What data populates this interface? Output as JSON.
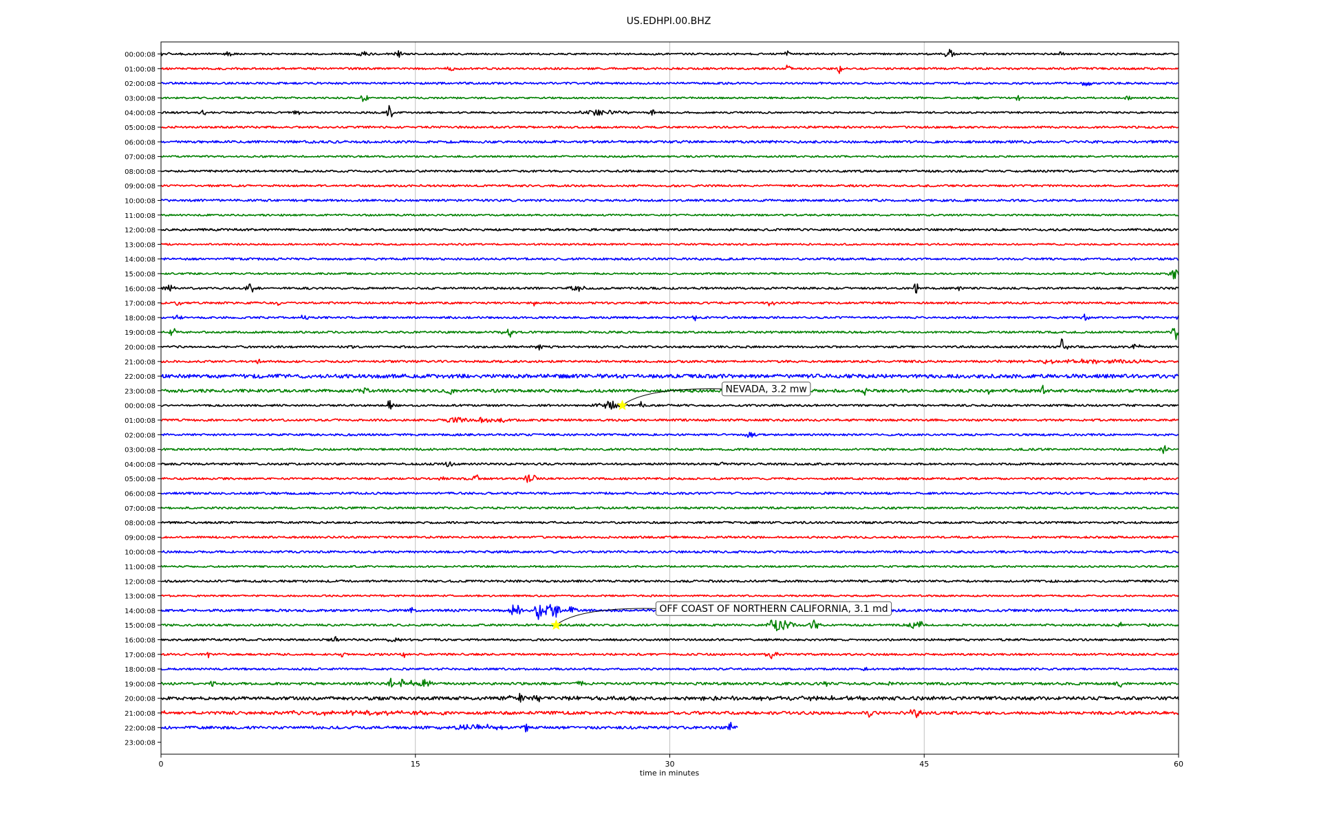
{
  "chart_data": {
    "type": "line",
    "title": "US.EDHPI.00.BHZ",
    "xlabel": "time in minutes",
    "ylabel": "",
    "xlim": [
      0,
      60
    ],
    "x_ticks": [
      0,
      15,
      30,
      45,
      60
    ],
    "x_tick_labels": [
      "0",
      "15",
      "30",
      "45",
      "60"
    ],
    "grid": "vertical",
    "color_cycle": [
      "#000000",
      "#ff0000",
      "#0000ff",
      "#008000"
    ],
    "row_labels": [
      "00:00:08",
      "01:00:08",
      "02:00:08",
      "03:00:08",
      "04:00:08",
      "05:00:08",
      "06:00:08",
      "07:00:08",
      "08:00:08",
      "09:00:08",
      "10:00:08",
      "11:00:08",
      "12:00:08",
      "13:00:08",
      "14:00:08",
      "15:00:08",
      "16:00:08",
      "17:00:08",
      "18:00:08",
      "19:00:08",
      "20:00:08",
      "21:00:08",
      "22:00:08",
      "23:00:08",
      "00:00:08",
      "01:00:08",
      "02:00:08",
      "03:00:08",
      "04:00:08",
      "05:00:08",
      "06:00:08",
      "07:00:08",
      "08:00:08",
      "09:00:08",
      "10:00:08",
      "11:00:08",
      "12:00:08",
      "13:00:08",
      "14:00:08",
      "15:00:08",
      "16:00:08",
      "17:00:08",
      "18:00:08",
      "19:00:08",
      "20:00:08",
      "21:00:08",
      "22:00:08",
      "23:00:08"
    ],
    "traces": [
      {
        "noise": 1.3,
        "bursts": [
          [
            0,
            3,
            1.5
          ],
          [
            4,
            0.3,
            5
          ],
          [
            12,
            0.6,
            4
          ],
          [
            14,
            0.3,
            6
          ],
          [
            37,
            0.3,
            4
          ],
          [
            46.5,
            0.4,
            6
          ],
          [
            48.5,
            0.5,
            5
          ],
          [
            53,
            0.3,
            3
          ]
        ]
      },
      {
        "noise": 1.5,
        "bursts": [
          [
            17,
            0.3,
            5
          ],
          [
            37,
            0.2,
            7
          ],
          [
            40,
            0.2,
            9
          ]
        ]
      },
      {
        "noise": 1.5,
        "bursts": [
          [
            54.5,
            0.6,
            3
          ]
        ]
      },
      {
        "noise": 1.3,
        "bursts": [
          [
            12,
            0.4,
            5
          ],
          [
            48,
            0.3,
            3
          ],
          [
            50.5,
            0.2,
            6
          ],
          [
            57,
            0.3,
            5
          ]
        ]
      },
      {
        "noise": 1.3,
        "bursts": [
          [
            2.5,
            0.3,
            4
          ],
          [
            8,
            0.3,
            5
          ],
          [
            13.5,
            0.3,
            8
          ],
          [
            26,
            2,
            4
          ],
          [
            29,
            0.3,
            4
          ]
        ]
      },
      {
        "noise": 1.5,
        "bursts": []
      },
      {
        "noise": 1.8,
        "bursts": []
      },
      {
        "noise": 1.3,
        "bursts": []
      },
      {
        "noise": 1.5,
        "bursts": []
      },
      {
        "noise": 1.5,
        "bursts": []
      },
      {
        "noise": 1.6,
        "bursts": []
      },
      {
        "noise": 1.3,
        "bursts": []
      },
      {
        "noise": 1.6,
        "bursts": []
      },
      {
        "noise": 1.3,
        "bursts": []
      },
      {
        "noise": 1.6,
        "bursts": []
      },
      {
        "noise": 1.3,
        "bursts": [
          [
            59.7,
            0.4,
            10
          ]
        ]
      },
      {
        "noise": 1.5,
        "bursts": [
          [
            0.5,
            0.5,
            4
          ],
          [
            5.3,
            0.5,
            8
          ],
          [
            24.5,
            0.6,
            5
          ],
          [
            44.5,
            0.3,
            7
          ],
          [
            47,
            0.2,
            6
          ]
        ]
      },
      {
        "noise": 1.5,
        "bursts": [
          [
            1,
            0.3,
            3
          ],
          [
            6.8,
            0.3,
            5
          ],
          [
            22,
            0.2,
            4
          ],
          [
            36,
            0.4,
            3
          ]
        ]
      },
      {
        "noise": 1.5,
        "bursts": [
          [
            1,
            0.4,
            3
          ],
          [
            8.5,
            0.5,
            3
          ],
          [
            31.5,
            0.2,
            4
          ],
          [
            54.5,
            0.4,
            5
          ],
          [
            57.8,
            0.2,
            4
          ],
          [
            59.9,
            0.2,
            10
          ]
        ]
      },
      {
        "noise": 1.5,
        "bursts": [
          [
            0.8,
            0.5,
            4
          ],
          [
            20.5,
            0.5,
            5
          ],
          [
            59.8,
            0.3,
            9
          ]
        ]
      },
      {
        "noise": 1.5,
        "bursts": [
          [
            11.2,
            0.3,
            3
          ],
          [
            22.3,
            0.5,
            3
          ],
          [
            53.2,
            0.3,
            10
          ],
          [
            57.5,
            0.4,
            4
          ]
        ]
      },
      {
        "noise": 1.6,
        "bursts": [
          [
            5.8,
            0.2,
            5
          ],
          [
            54,
            6,
            2.4
          ]
        ]
      },
      {
        "noise": 2.8,
        "bursts": []
      },
      {
        "noise": 2.2,
        "bursts": [
          [
            12,
            0.5,
            4
          ],
          [
            17.2,
            0.5,
            6
          ],
          [
            41.5,
            0.2,
            5
          ],
          [
            48.8,
            0.2,
            4
          ],
          [
            52,
            0.2,
            6
          ]
        ]
      },
      {
        "noise": 1.5,
        "bursts": [
          [
            13.5,
            0.3,
            6
          ],
          [
            26.5,
            1.2,
            6
          ],
          [
            28.3,
            0.2,
            5
          ]
        ]
      },
      {
        "noise": 1.6,
        "bursts": [
          [
            17.5,
            1,
            5
          ],
          [
            19,
            0.8,
            4
          ],
          [
            20,
            0.5,
            4
          ]
        ]
      },
      {
        "noise": 1.5,
        "bursts": [
          [
            34.8,
            0.5,
            4
          ]
        ]
      },
      {
        "noise": 1.5,
        "bursts": [
          [
            59.2,
            0.4,
            5
          ]
        ]
      },
      {
        "noise": 1.5,
        "bursts": [
          [
            17,
            0.3,
            6
          ],
          [
            33,
            0.3,
            3
          ]
        ]
      },
      {
        "noise": 1.5,
        "bursts": [
          [
            16.5,
            0.5,
            3
          ],
          [
            18.6,
            0.2,
            6
          ],
          [
            21.8,
            0.5,
            8
          ]
        ]
      },
      {
        "noise": 1.6,
        "bursts": []
      },
      {
        "noise": 1.5,
        "bursts": []
      },
      {
        "noise": 1.5,
        "bursts": []
      },
      {
        "noise": 1.5,
        "bursts": []
      },
      {
        "noise": 1.6,
        "bursts": []
      },
      {
        "noise": 1.3,
        "bursts": []
      },
      {
        "noise": 1.6,
        "bursts": []
      },
      {
        "noise": 1.3,
        "bursts": []
      },
      {
        "noise": 1.8,
        "bursts": [
          [
            14.8,
            0.4,
            3
          ],
          [
            21,
            0.6,
            7
          ],
          [
            22.3,
            0.4,
            10
          ],
          [
            23,
            0.8,
            11
          ],
          [
            24.2,
            0.4,
            6
          ]
        ]
      },
      {
        "noise": 1.5,
        "bursts": [
          [
            36.5,
            1,
            9
          ],
          [
            38.5,
            0.5,
            5
          ],
          [
            44.5,
            0.8,
            6
          ],
          [
            56.5,
            0.3,
            4
          ],
          [
            58.5,
            0.4,
            3
          ]
        ]
      },
      {
        "noise": 1.5,
        "bursts": [
          [
            10.3,
            0.5,
            4
          ],
          [
            13.8,
            0.6,
            4
          ]
        ]
      },
      {
        "noise": 1.5,
        "bursts": [
          [
            2.8,
            0.2,
            6
          ],
          [
            10.7,
            0.2,
            5
          ],
          [
            14.3,
            0.2,
            3
          ],
          [
            36,
            0.8,
            4
          ]
        ]
      },
      {
        "noise": 1.5,
        "bursts": [
          [
            41.5,
            0.3,
            3
          ],
          [
            43.8,
            0.3,
            3
          ]
        ]
      },
      {
        "noise": 1.8,
        "bursts": [
          [
            3,
            0.3,
            4
          ],
          [
            12.3,
            0.3,
            3
          ],
          [
            13.5,
            0.3,
            8
          ],
          [
            14.2,
            0.3,
            5
          ],
          [
            15.3,
            1.2,
            6
          ],
          [
            24.7,
            0.5,
            3
          ],
          [
            39.2,
            0.3,
            3
          ],
          [
            43,
            0.2,
            5
          ],
          [
            48,
            0.2,
            3
          ],
          [
            56.5,
            0.3,
            5
          ]
        ]
      },
      {
        "noise": 2.3,
        "bursts": [
          [
            21,
            1,
            4
          ],
          [
            22.3,
            0.6,
            5
          ],
          [
            36,
            24,
            1.2
          ]
        ]
      },
      {
        "noise": 2.2,
        "bursts": [
          [
            0,
            1.5,
            1.5
          ],
          [
            9.6,
            0.2,
            7
          ],
          [
            15.5,
            0.3,
            7
          ],
          [
            12,
            9,
            1.6
          ],
          [
            41.8,
            0.2,
            8
          ],
          [
            44.5,
            0.4,
            7
          ]
        ]
      },
      {
        "noise": 2.0,
        "bursts": [
          [
            18.5,
            2.5,
            3
          ],
          [
            21.5,
            0.3,
            4
          ],
          [
            33.6,
            0.2,
            8
          ]
        ]
      },
      {
        "noise": 0,
        "bursts": []
      }
    ],
    "trace_end_minutes": [
      60,
      60,
      60,
      60,
      60,
      60,
      60,
      60,
      60,
      60,
      60,
      60,
      60,
      60,
      60,
      60,
      60,
      60,
      60,
      60,
      60,
      60,
      60,
      60,
      60,
      60,
      60,
      60,
      60,
      60,
      60,
      60,
      60,
      60,
      60,
      60,
      60,
      60,
      60,
      60,
      60,
      60,
      60,
      60,
      60,
      60,
      34.0,
      0
    ],
    "events": [
      {
        "label": "NEVADA, 3.2 mw",
        "row": 24,
        "minute": 27.2,
        "marker_color": "#ffff00"
      },
      {
        "label": "OFF COAST OF NORTHERN CALIFORNIA, 3.1 md",
        "row": 39,
        "minute": 23.3,
        "marker_color": "#ffff00"
      }
    ]
  }
}
